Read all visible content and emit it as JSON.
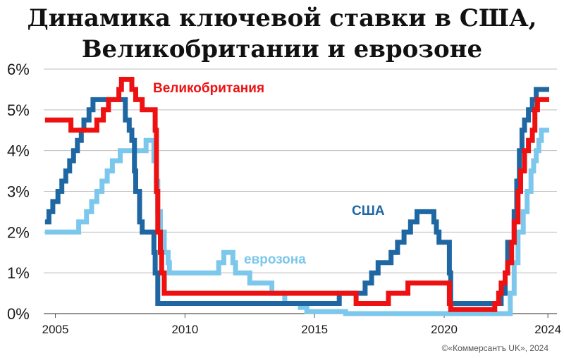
{
  "chart_data": {
    "type": "line",
    "title": "Динамика ключевой ставки в США,\nВеликобритании и еврозоне",
    "xlabel": "",
    "ylabel": "",
    "xlim": [
      2004.55,
      2024.35
    ],
    "ylim": [
      0,
      6
    ],
    "x_ticks": [
      2005,
      2010,
      2015,
      2020,
      2024
    ],
    "y_ticks": [
      0,
      1,
      2,
      3,
      4,
      5,
      6
    ],
    "y_tick_labels": [
      "0%",
      "1%",
      "2%",
      "3%",
      "4%",
      "5%",
      "6%"
    ],
    "grid": true,
    "credit": "©«Коммерсантъ UK», 2024",
    "series": [
      {
        "name": "еврозона",
        "color": "#7cc8ec",
        "points": [
          [
            2004.6,
            2.0
          ],
          [
            2005.9,
            2.0
          ],
          [
            2005.9,
            2.25
          ],
          [
            2006.2,
            2.5
          ],
          [
            2006.4,
            2.75
          ],
          [
            2006.6,
            3.0
          ],
          [
            2006.8,
            3.25
          ],
          [
            2007.0,
            3.5
          ],
          [
            2007.2,
            3.75
          ],
          [
            2007.5,
            4.0
          ],
          [
            2008.5,
            4.0
          ],
          [
            2008.5,
            4.25
          ],
          [
            2008.8,
            4.25
          ],
          [
            2008.8,
            3.75
          ],
          [
            2008.9,
            3.25
          ],
          [
            2008.95,
            2.5
          ],
          [
            2009.05,
            2.0
          ],
          [
            2009.2,
            1.5
          ],
          [
            2009.35,
            1.25
          ],
          [
            2009.4,
            1.0
          ],
          [
            2011.3,
            1.0
          ],
          [
            2011.3,
            1.25
          ],
          [
            2011.5,
            1.5
          ],
          [
            2011.8,
            1.5
          ],
          [
            2011.85,
            1.25
          ],
          [
            2011.95,
            1.0
          ],
          [
            2012.5,
            1.0
          ],
          [
            2012.5,
            0.75
          ],
          [
            2013.35,
            0.75
          ],
          [
            2013.35,
            0.5
          ],
          [
            2013.85,
            0.5
          ],
          [
            2013.85,
            0.25
          ],
          [
            2014.45,
            0.25
          ],
          [
            2014.45,
            0.15
          ],
          [
            2014.7,
            0.15
          ],
          [
            2014.7,
            0.05
          ],
          [
            2016.2,
            0.05
          ],
          [
            2016.2,
            0.0
          ],
          [
            2022.55,
            0.0
          ],
          [
            2022.55,
            0.5
          ],
          [
            2022.7,
            1.25
          ],
          [
            2022.85,
            2.0
          ],
          [
            2023.05,
            2.5
          ],
          [
            2023.2,
            3.0
          ],
          [
            2023.35,
            3.5
          ],
          [
            2023.45,
            3.75
          ],
          [
            2023.55,
            4.0
          ],
          [
            2023.65,
            4.25
          ],
          [
            2023.75,
            4.5
          ],
          [
            2024.05,
            4.5
          ]
        ]
      },
      {
        "name": "США",
        "color": "#1e67a3",
        "points": [
          [
            2004.6,
            2.25
          ],
          [
            2004.75,
            2.5
          ],
          [
            2004.9,
            2.75
          ],
          [
            2005.1,
            3.0
          ],
          [
            2005.25,
            3.25
          ],
          [
            2005.4,
            3.5
          ],
          [
            2005.55,
            3.75
          ],
          [
            2005.7,
            4.0
          ],
          [
            2005.85,
            4.25
          ],
          [
            2006.0,
            4.5
          ],
          [
            2006.1,
            4.75
          ],
          [
            2006.3,
            5.0
          ],
          [
            2006.45,
            5.25
          ],
          [
            2007.65,
            5.25
          ],
          [
            2007.7,
            4.75
          ],
          [
            2007.85,
            4.5
          ],
          [
            2007.95,
            4.25
          ],
          [
            2008.05,
            3.5
          ],
          [
            2008.1,
            3.0
          ],
          [
            2008.25,
            2.25
          ],
          [
            2008.35,
            2.0
          ],
          [
            2008.75,
            2.0
          ],
          [
            2008.8,
            1.5
          ],
          [
            2008.85,
            1.0
          ],
          [
            2008.95,
            0.25
          ],
          [
            2015.95,
            0.25
          ],
          [
            2015.95,
            0.5
          ],
          [
            2016.95,
            0.5
          ],
          [
            2016.95,
            0.75
          ],
          [
            2017.2,
            1.0
          ],
          [
            2017.45,
            1.25
          ],
          [
            2017.95,
            1.5
          ],
          [
            2018.2,
            1.75
          ],
          [
            2018.45,
            2.0
          ],
          [
            2018.7,
            2.25
          ],
          [
            2018.95,
            2.5
          ],
          [
            2019.55,
            2.5
          ],
          [
            2019.6,
            2.25
          ],
          [
            2019.7,
            2.0
          ],
          [
            2019.8,
            1.75
          ],
          [
            2020.15,
            1.75
          ],
          [
            2020.2,
            1.0
          ],
          [
            2020.25,
            0.25
          ],
          [
            2022.2,
            0.25
          ],
          [
            2022.2,
            0.5
          ],
          [
            2022.35,
            1.0
          ],
          [
            2022.45,
            1.75
          ],
          [
            2022.7,
            2.5
          ],
          [
            2022.8,
            3.25
          ],
          [
            2022.9,
            4.0
          ],
          [
            2023.0,
            4.5
          ],
          [
            2023.1,
            4.75
          ],
          [
            2023.25,
            5.0
          ],
          [
            2023.4,
            5.25
          ],
          [
            2023.55,
            5.5
          ],
          [
            2024.05,
            5.5
          ]
        ]
      },
      {
        "name": "Великобритания",
        "color": "#ee1111",
        "points": [
          [
            2004.6,
            4.75
          ],
          [
            2005.6,
            4.75
          ],
          [
            2005.6,
            4.5
          ],
          [
            2006.6,
            4.5
          ],
          [
            2006.6,
            4.75
          ],
          [
            2006.85,
            5.0
          ],
          [
            2007.05,
            5.25
          ],
          [
            2007.45,
            5.5
          ],
          [
            2007.55,
            5.75
          ],
          [
            2007.95,
            5.75
          ],
          [
            2007.95,
            5.5
          ],
          [
            2008.1,
            5.25
          ],
          [
            2008.35,
            5.0
          ],
          [
            2008.8,
            5.0
          ],
          [
            2008.85,
            4.5
          ],
          [
            2008.9,
            3.0
          ],
          [
            2008.95,
            2.0
          ],
          [
            2009.05,
            1.5
          ],
          [
            2009.1,
            1.0
          ],
          [
            2009.2,
            0.5
          ],
          [
            2016.6,
            0.5
          ],
          [
            2016.6,
            0.25
          ],
          [
            2017.85,
            0.25
          ],
          [
            2017.85,
            0.5
          ],
          [
            2018.6,
            0.5
          ],
          [
            2018.6,
            0.75
          ],
          [
            2020.2,
            0.75
          ],
          [
            2020.2,
            0.25
          ],
          [
            2020.25,
            0.1
          ],
          [
            2021.95,
            0.1
          ],
          [
            2021.95,
            0.25
          ],
          [
            2022.1,
            0.5
          ],
          [
            2022.2,
            0.75
          ],
          [
            2022.35,
            1.0
          ],
          [
            2022.45,
            1.25
          ],
          [
            2022.6,
            1.75
          ],
          [
            2022.7,
            2.25
          ],
          [
            2022.85,
            3.0
          ],
          [
            2022.95,
            3.5
          ],
          [
            2023.1,
            4.0
          ],
          [
            2023.25,
            4.25
          ],
          [
            2023.4,
            4.5
          ],
          [
            2023.5,
            5.0
          ],
          [
            2023.6,
            5.25
          ],
          [
            2024.05,
            5.25
          ]
        ]
      }
    ]
  }
}
